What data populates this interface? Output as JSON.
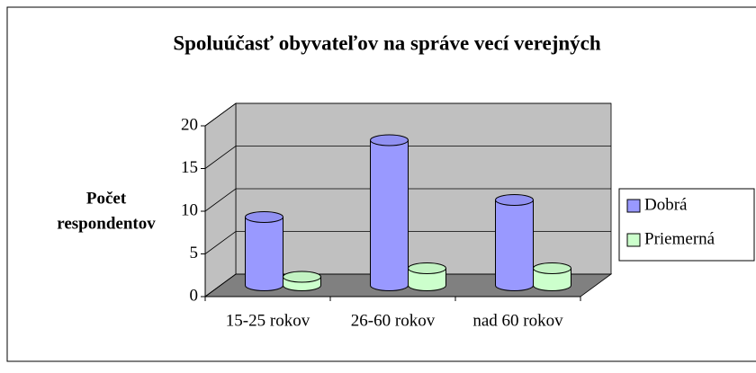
{
  "chart_data": {
    "type": "bar3d",
    "title": "Spoluúčasť obyvateľov  na správe vecí verejných",
    "ylabel_lines": [
      "Počet",
      "respondentov"
    ],
    "categories": [
      "15-25 rokov",
      "26-60 rokov",
      "nad 60 rokov"
    ],
    "series": [
      {
        "name": "Dobrá",
        "color": "#9999ff",
        "values": [
          8,
          17,
          10
        ]
      },
      {
        "name": "Priemerná",
        "color": "#ccffcc",
        "values": [
          1,
          2,
          2
        ]
      }
    ],
    "ylim": [
      0,
      20
    ],
    "yticks": [
      0,
      5,
      10,
      15,
      20
    ],
    "grid": true,
    "legend": "right"
  }
}
